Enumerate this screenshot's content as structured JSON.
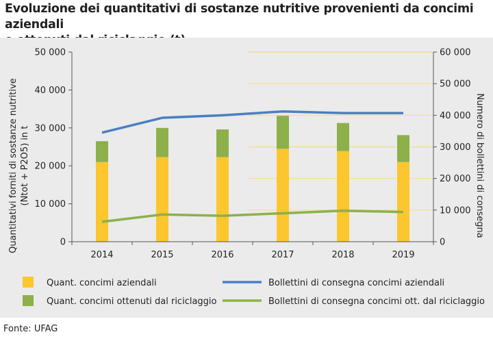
{
  "title_line1": "Evoluzione dei quantitativi di sostanze nutritive provenienti da concimi aziendali",
  "title_line2": "e ottenuti dal riciclaggio (t)",
  "source": "Fonte: UFAG",
  "colors": {
    "bar_aziendali": "#fbc62e",
    "bar_riciclaggio": "#8db04a",
    "line_aziendali": "#4a7fc4",
    "line_riciclaggio": "#8db04a",
    "gridline": "#f5dc87",
    "panel": "#ebebeb"
  },
  "chart_data": {
    "type": "bar",
    "categories": [
      "2014",
      "2015",
      "2016",
      "2017",
      "2018",
      "2019"
    ],
    "series": [
      {
        "name": "Quant. concimi aziendali",
        "type": "bar",
        "axis": "left",
        "stack": "a",
        "values": [
          21000,
          22300,
          22300,
          24500,
          23900,
          21000
        ]
      },
      {
        "name": "Quant. concimi ottenuti dal riciclaggio",
        "type": "bar",
        "axis": "left",
        "stack": "a",
        "values": [
          5500,
          7700,
          7300,
          8700,
          7400,
          7100
        ]
      },
      {
        "name": "Bollettini di consegna concimi aziendali",
        "type": "line",
        "axis": "right",
        "values": [
          34500,
          39200,
          40000,
          41200,
          40700,
          40700
        ]
      },
      {
        "name": "Bollettini di consegna concimi ott. dal riciclaggio",
        "type": "line",
        "axis": "right",
        "values": [
          6300,
          8600,
          8200,
          9000,
          9800,
          9400
        ]
      }
    ],
    "ylabel": "Quantitativi forniti di sostanze nutritive (Ntot + P2O5) in t",
    "y2label": "Numero di bollettini di consegna",
    "ylim": [
      0,
      50000
    ],
    "y2lim": [
      0,
      60000
    ],
    "yticks": [
      "0",
      "10 000",
      "20 000",
      "30 000",
      "40 000",
      "50 000"
    ],
    "y2ticks": [
      "0",
      "10 000",
      "20 000",
      "30 000",
      "40 000",
      "50 000",
      "60 000"
    ],
    "legend_position": "bottom"
  }
}
